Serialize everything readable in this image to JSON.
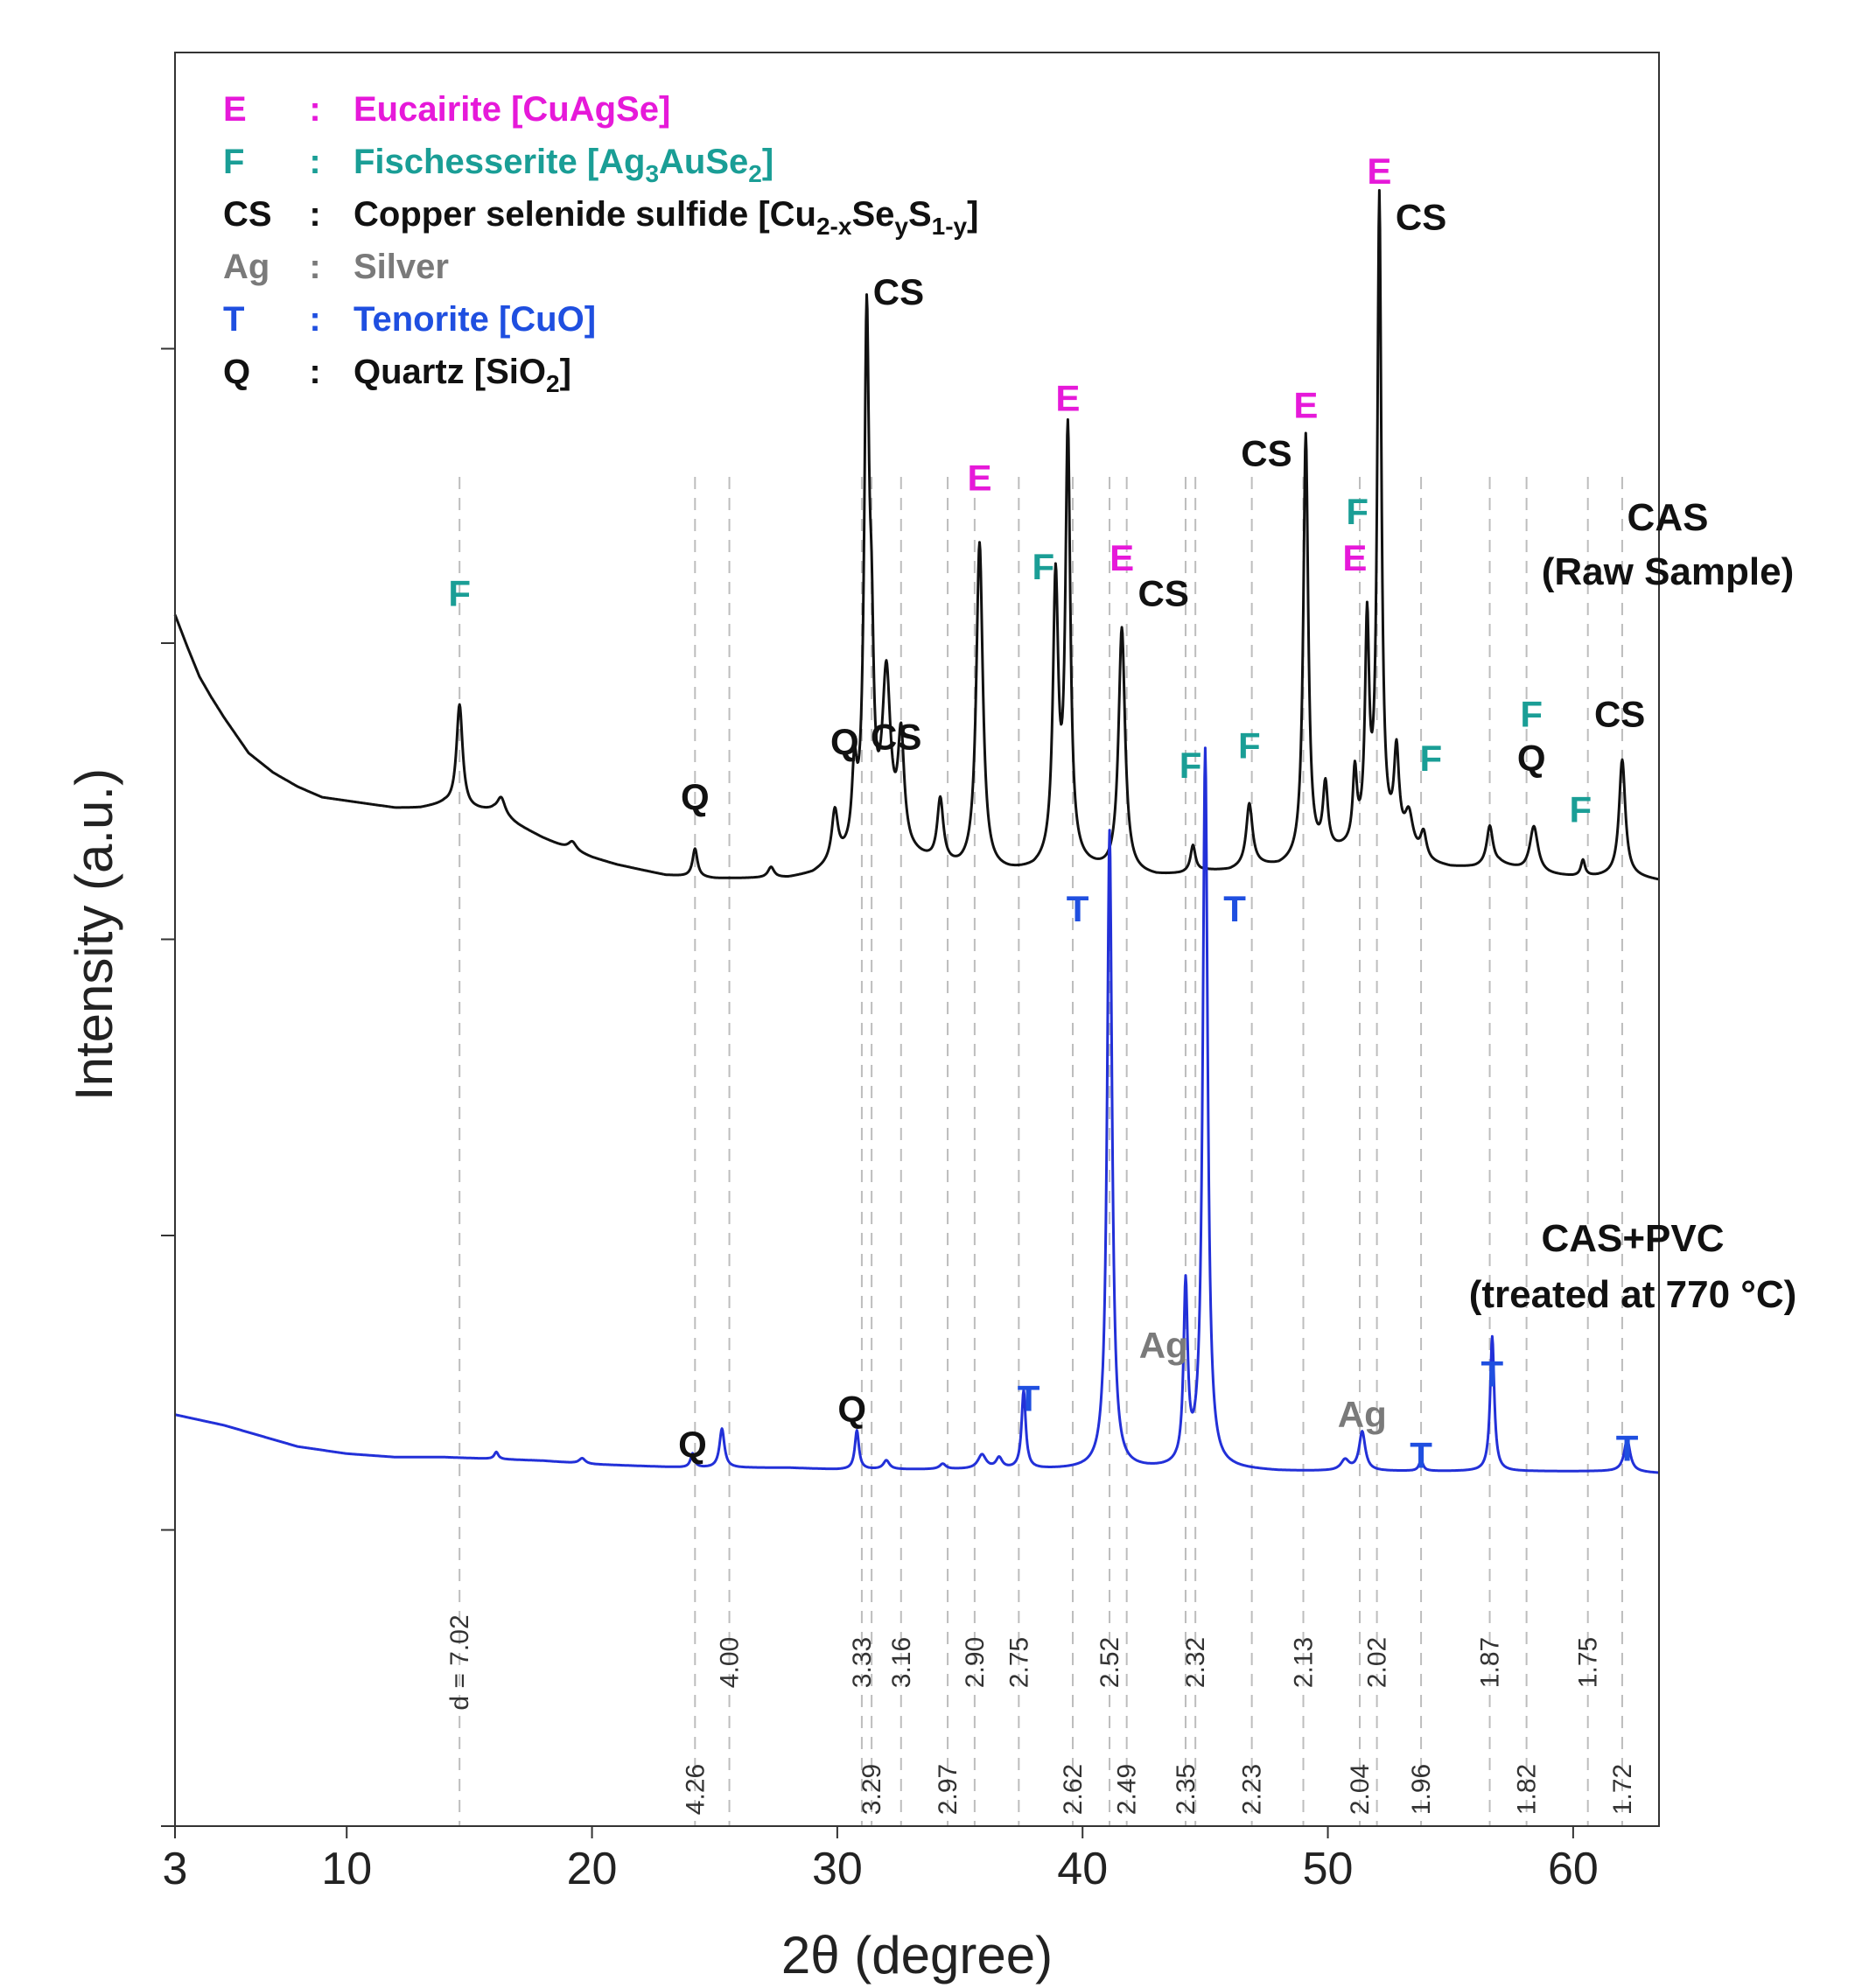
{
  "colors": {
    "E": "#e619d9",
    "F": "#1a9e96",
    "CS": "#111111",
    "Ag": "#7a7a7a",
    "T": "#1f4fe0",
    "Q": "#111111",
    "raw_line": "#111111",
    "treated_line": "#2230d8",
    "ref_line": "#bdbdbd"
  },
  "legend": [
    {
      "code": "E",
      "sep": ":",
      "name": "Eucairite [CuAgSe]",
      "formula": [
        [
          "Eucairite [CuAgSe]",
          ""
        ]
      ]
    },
    {
      "code": "F",
      "sep": ":",
      "name": "Fischesserite [Ag3AuSe2]",
      "formula": [
        [
          "Fischesserite [Ag",
          ""
        ],
        [
          "3",
          "sub"
        ],
        [
          "AuSe",
          ""
        ],
        [
          "2",
          "sub"
        ],
        [
          "]",
          ""
        ]
      ]
    },
    {
      "code": "CS",
      "sep": ":",
      "name": "Copper selenide sulfide [Cu2-xSeyS1-y]",
      "formula": [
        [
          "Copper selenide sulfide [Cu",
          ""
        ],
        [
          "2-x",
          "sub"
        ],
        [
          "Se",
          ""
        ],
        [
          "y",
          "sub"
        ],
        [
          "S",
          ""
        ],
        [
          "1-y",
          "sub"
        ],
        [
          "]",
          ""
        ]
      ]
    },
    {
      "code": "Ag",
      "sep": ":",
      "name": "Silver",
      "formula": [
        [
          "Silver",
          ""
        ]
      ]
    },
    {
      "code": "T",
      "sep": ":",
      "name": "Tenorite [CuO]",
      "formula": [
        [
          "Tenorite [CuO]",
          ""
        ]
      ]
    },
    {
      "code": "Q",
      "sep": ":",
      "name": "Quartz [SiO2]",
      "formula": [
        [
          "Quartz [SiO",
          ""
        ],
        [
          "2",
          "sub"
        ],
        [
          "]",
          ""
        ]
      ]
    }
  ],
  "chart_data": {
    "type": "line",
    "xlabel": "2θ (degree)",
    "ylabel": "Intensity (a.u.)",
    "xlim": [
      3,
      63.5
    ],
    "ylim": [
      0,
      100
    ],
    "xticks": [
      3,
      10,
      20,
      30,
      40,
      50,
      60
    ],
    "yticks": [
      0,
      16.7,
      33.3,
      50,
      66.7,
      83.3
    ],
    "series": [
      {
        "name": "CAS (Raw Sample)",
        "label_line1": "CAS",
        "label_line2": "(Raw Sample)",
        "baseline": [
          [
            3,
            68.3
          ],
          [
            3.5,
            66.5
          ],
          [
            4,
            64.8
          ],
          [
            4.5,
            63.6
          ],
          [
            5,
            62.5
          ],
          [
            6,
            60.5
          ],
          [
            7,
            59.4
          ],
          [
            8,
            58.6
          ],
          [
            9,
            58.0
          ],
          [
            10,
            57.8
          ],
          [
            11,
            57.6
          ],
          [
            12,
            57.4
          ],
          [
            13,
            57.4
          ],
          [
            14,
            57.6
          ],
          [
            15,
            57.3
          ],
          [
            16,
            57.2
          ],
          [
            17,
            56.4
          ],
          [
            18,
            55.7
          ],
          [
            19,
            55.1
          ],
          [
            20,
            54.6
          ],
          [
            21,
            54.2
          ],
          [
            22,
            53.9
          ],
          [
            23,
            53.6
          ],
          [
            24,
            53.5
          ],
          [
            25,
            53.4
          ],
          [
            26,
            53.4
          ],
          [
            27,
            53.4
          ],
          [
            28,
            53.4
          ],
          [
            29,
            53.6
          ],
          [
            30,
            54.2
          ],
          [
            31,
            54.7
          ],
          [
            32,
            55.4
          ],
          [
            33,
            54.6
          ],
          [
            34,
            54.1
          ],
          [
            35,
            53.8
          ],
          [
            36,
            53.7
          ],
          [
            37,
            53.7
          ],
          [
            38,
            53.8
          ],
          [
            39,
            54.3
          ],
          [
            40,
            54.0
          ],
          [
            41,
            53.7
          ],
          [
            42,
            53.6
          ],
          [
            43,
            53.5
          ],
          [
            44,
            53.6
          ],
          [
            45,
            53.8
          ],
          [
            46,
            53.8
          ],
          [
            47,
            54.1
          ],
          [
            48,
            54.0
          ],
          [
            49,
            54.3
          ],
          [
            50,
            54.7
          ],
          [
            51,
            55.0
          ],
          [
            52,
            55.5
          ],
          [
            53,
            55.0
          ],
          [
            54,
            54.2
          ],
          [
            55,
            54.0
          ],
          [
            56,
            54.0
          ],
          [
            57,
            54.2
          ],
          [
            58,
            53.8
          ],
          [
            59,
            53.6
          ],
          [
            60,
            53.5
          ],
          [
            61,
            53.5
          ],
          [
            62,
            53.6
          ],
          [
            63,
            53.4
          ],
          [
            63.5,
            53.3
          ]
        ],
        "peaks": [
          [
            14.6,
            5.8,
            0.15
          ],
          [
            16.3,
            1.0,
            0.2
          ],
          [
            19.2,
            0.5,
            0.2
          ],
          [
            24.2,
            1.6,
            0.12
          ],
          [
            27.3,
            0.6,
            0.15
          ],
          [
            29.9,
            2.8,
            0.15
          ],
          [
            30.7,
            4.2,
            0.12
          ],
          [
            31.2,
            29.0,
            0.12
          ],
          [
            31.4,
            8.0,
            0.1
          ],
          [
            32.0,
            9.0,
            0.2
          ],
          [
            32.6,
            6.0,
            0.15
          ],
          [
            34.2,
            3.6,
            0.15
          ],
          [
            35.8,
            18.5,
            0.16
          ],
          [
            38.9,
            15.5,
            0.13
          ],
          [
            39.4,
            24.0,
            0.12
          ],
          [
            41.6,
            13.8,
            0.16
          ],
          [
            44.5,
            1.5,
            0.12
          ],
          [
            46.8,
            3.5,
            0.15
          ],
          [
            49.1,
            24.0,
            0.12
          ],
          [
            49.9,
            3.7,
            0.12
          ],
          [
            51.1,
            4.0,
            0.1
          ],
          [
            51.6,
            12.0,
            0.1
          ],
          [
            52.1,
            36.0,
            0.1
          ],
          [
            52.8,
            5.0,
            0.12
          ],
          [
            53.3,
            2.0,
            0.2
          ],
          [
            53.9,
            1.5,
            0.15
          ],
          [
            56.6,
            2.2,
            0.15
          ],
          [
            58.4,
            2.6,
            0.2
          ],
          [
            60.4,
            0.9,
            0.1
          ],
          [
            62.0,
            6.5,
            0.15
          ]
        ]
      },
      {
        "name": "CAS+PVC (treated at 770 °C)",
        "label_line1": "CAS+PVC",
        "label_line2": "(treated at 770 °C)",
        "baseline": [
          [
            3,
            23.2
          ],
          [
            4,
            22.9
          ],
          [
            5,
            22.6
          ],
          [
            6,
            22.2
          ],
          [
            7,
            21.8
          ],
          [
            8,
            21.4
          ],
          [
            9,
            21.2
          ],
          [
            10,
            21.0
          ],
          [
            11,
            20.9
          ],
          [
            12,
            20.8
          ],
          [
            14,
            20.8
          ],
          [
            16,
            20.7
          ],
          [
            18,
            20.6
          ],
          [
            20,
            20.4
          ],
          [
            22,
            20.3
          ],
          [
            24,
            20.2
          ],
          [
            26,
            20.2
          ],
          [
            28,
            20.2
          ],
          [
            30,
            20.1
          ],
          [
            32,
            20.1
          ],
          [
            34,
            20.1
          ],
          [
            36,
            20.1
          ],
          [
            38,
            20.1
          ],
          [
            40,
            20.1
          ],
          [
            42,
            20.1
          ],
          [
            44,
            20.1
          ],
          [
            46,
            20.1
          ],
          [
            48,
            20.0
          ],
          [
            50,
            20.0
          ],
          [
            52,
            20.0
          ],
          [
            54,
            20.0
          ],
          [
            56,
            20.0
          ],
          [
            58,
            20.0
          ],
          [
            60,
            20.0
          ],
          [
            62,
            20.0
          ],
          [
            63.5,
            19.9
          ]
        ],
        "peaks": [
          [
            16.1,
            0.4,
            0.1
          ],
          [
            19.6,
            0.3,
            0.15
          ],
          [
            24.1,
            0.8,
            0.1
          ],
          [
            25.3,
            2.2,
            0.12
          ],
          [
            30.8,
            2.2,
            0.1
          ],
          [
            32.0,
            0.5,
            0.15
          ],
          [
            34.3,
            0.3,
            0.15
          ],
          [
            35.9,
            0.8,
            0.2
          ],
          [
            36.6,
            0.6,
            0.15
          ],
          [
            37.6,
            4.4,
            0.1
          ],
          [
            41.1,
            36.0,
            0.12
          ],
          [
            44.2,
            10.0,
            0.1
          ],
          [
            45.0,
            40.5,
            0.12
          ],
          [
            50.7,
            0.6,
            0.2
          ],
          [
            51.4,
            2.2,
            0.15
          ],
          [
            53.8,
            0.6,
            0.1
          ],
          [
            56.7,
            7.6,
            0.1
          ],
          [
            62.2,
            1.8,
            0.15
          ]
        ]
      }
    ],
    "d_spacings_top": [
      {
        "x": 14.6,
        "label": "d = 7.02"
      },
      {
        "x": 25.6,
        "label": "4.00"
      },
      {
        "x": 31.0,
        "label": "3.33"
      },
      {
        "x": 32.6,
        "label": "3.16"
      },
      {
        "x": 35.6,
        "label": "2.90"
      },
      {
        "x": 37.4,
        "label": "2.75"
      },
      {
        "x": 41.1,
        "label": "2.52"
      },
      {
        "x": 44.6,
        "label": "2.32"
      },
      {
        "x": 49.0,
        "label": "2.13"
      },
      {
        "x": 52.0,
        "label": "2.02"
      },
      {
        "x": 56.6,
        "label": "1.87"
      },
      {
        "x": 60.6,
        "label": "1.75"
      }
    ],
    "d_spacings_bottom": [
      {
        "x": 24.2,
        "label": "4.26"
      },
      {
        "x": 31.4,
        "label": "3.29"
      },
      {
        "x": 34.5,
        "label": "2.97"
      },
      {
        "x": 39.6,
        "label": "2.62"
      },
      {
        "x": 41.8,
        "label": "2.49"
      },
      {
        "x": 44.2,
        "label": "2.35"
      },
      {
        "x": 46.9,
        "label": "2.23"
      },
      {
        "x": 51.3,
        "label": "2.04"
      },
      {
        "x": 53.8,
        "label": "1.96"
      },
      {
        "x": 58.1,
        "label": "1.82"
      },
      {
        "x": 62.0,
        "label": "1.72"
      }
    ],
    "annotations": [
      {
        "text": "F",
        "phase": "F",
        "x": 14.6,
        "y": 68.8
      },
      {
        "text": "Q",
        "phase": "Q",
        "x": 24.2,
        "y": 57.3
      },
      {
        "text": "Q",
        "phase": "Q",
        "x": 30.3,
        "y": 60.4
      },
      {
        "text": "CS",
        "phase": "CS",
        "x": 32.4,
        "y": 60.7
      },
      {
        "text": "CS",
        "phase": "CS",
        "x": 32.5,
        "y": 85.8
      },
      {
        "text": "E",
        "phase": "E",
        "x": 35.8,
        "y": 75.3
      },
      {
        "text": "F",
        "phase": "F",
        "x": 38.4,
        "y": 70.3
      },
      {
        "text": "E",
        "phase": "E",
        "x": 39.4,
        "y": 79.8
      },
      {
        "text": "E",
        "phase": "E",
        "x": 41.6,
        "y": 70.8
      },
      {
        "text": "CS",
        "phase": "CS",
        "x": 43.3,
        "y": 68.8
      },
      {
        "text": "F",
        "phase": "F",
        "x": 44.4,
        "y": 59.1
      },
      {
        "text": "F",
        "phase": "F",
        "x": 46.8,
        "y": 60.2
      },
      {
        "text": "CS",
        "phase": "CS",
        "x": 47.5,
        "y": 76.7
      },
      {
        "text": "E",
        "phase": "E",
        "x": 49.1,
        "y": 79.4
      },
      {
        "text": "F",
        "phase": "F",
        "x": 51.2,
        "y": 73.4
      },
      {
        "text": "E",
        "phase": "E",
        "x": 51.1,
        "y": 70.8
      },
      {
        "text": "E",
        "phase": "E",
        "x": 52.1,
        "y": 92.6
      },
      {
        "text": "CS",
        "phase": "CS",
        "x": 53.8,
        "y": 90.0
      },
      {
        "text": "F",
        "phase": "F",
        "x": 54.2,
        "y": 59.5
      },
      {
        "text": "F",
        "phase": "F",
        "x": 58.3,
        "y": 62.0
      },
      {
        "text": "Q",
        "phase": "Q",
        "x": 58.3,
        "y": 59.5
      },
      {
        "text": "F",
        "phase": "F",
        "x": 60.3,
        "y": 56.6
      },
      {
        "text": "CS",
        "phase": "CS",
        "x": 61.9,
        "y": 62.0
      },
      {
        "text": "T",
        "phase": "T",
        "x": 39.8,
        "y": 51.0
      },
      {
        "text": "T",
        "phase": "T",
        "x": 46.2,
        "y": 51.0
      },
      {
        "text": "Ag",
        "phase": "Ag",
        "x": 43.3,
        "y": 26.4
      },
      {
        "text": "Q",
        "phase": "Q",
        "x": 24.1,
        "y": 20.8
      },
      {
        "text": "Q",
        "phase": "Q",
        "x": 30.6,
        "y": 22.8
      },
      {
        "text": "T",
        "phase": "T",
        "x": 37.8,
        "y": 23.4
      },
      {
        "text": "Ag",
        "phase": "Ag",
        "x": 51.4,
        "y": 22.5
      },
      {
        "text": "T",
        "phase": "T",
        "x": 53.8,
        "y": 20.2
      },
      {
        "text": "T",
        "phase": "T",
        "x": 56.7,
        "y": 24.8
      },
      {
        "text": "T",
        "phase": "T",
        "x": 62.2,
        "y": 20.6
      }
    ]
  }
}
